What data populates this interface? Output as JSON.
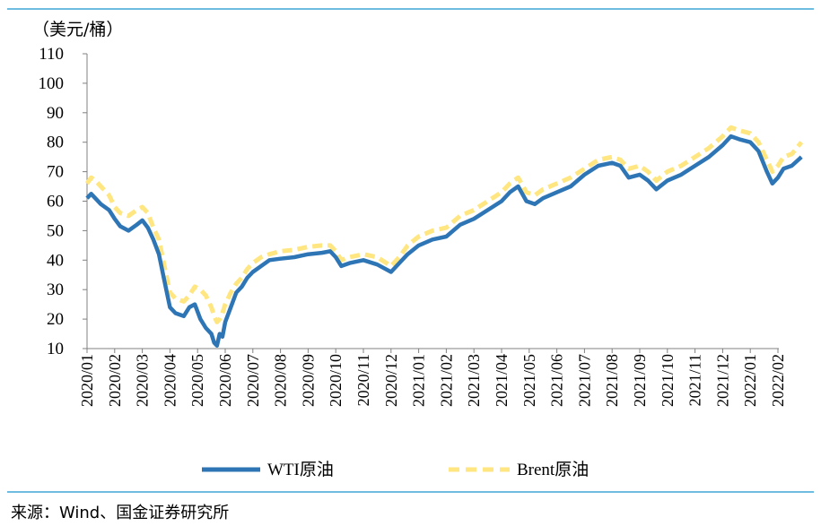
{
  "source": "来源：Wind、国金证券研究所",
  "colors": {
    "wti": "#2E75B6",
    "brent": "#FFE680",
    "rule": "#3FA7D6"
  },
  "chart_data": {
    "type": "line",
    "unit": "（美元/桶）",
    "ylim": [
      10,
      110
    ],
    "yticks": [
      10,
      20,
      30,
      40,
      50,
      60,
      70,
      80,
      90,
      100,
      110
    ],
    "categories": [
      "2020/01",
      "2020/02",
      "2020/03",
      "2020/04",
      "2020/05",
      "2020/06",
      "2020/07",
      "2020/08",
      "2020/09",
      "2020/10",
      "2020/11",
      "2020/12",
      "2021/01",
      "2021/02",
      "2021/03",
      "2021/04",
      "2021/05",
      "2021/06",
      "2021/07",
      "2021/08",
      "2021/09",
      "2021/10",
      "2021/11",
      "2021/12",
      "2022/01",
      "2022/02"
    ],
    "x_end": 25.85,
    "legend": "bottom",
    "series": [
      {
        "name": "WTI原油",
        "style": "solid",
        "points": [
          [
            0,
            61
          ],
          [
            0.15,
            62.5
          ],
          [
            0.3,
            61
          ],
          [
            0.5,
            59
          ],
          [
            0.8,
            57
          ],
          [
            1.0,
            54
          ],
          [
            1.2,
            51.5
          ],
          [
            1.5,
            50
          ],
          [
            1.8,
            52
          ],
          [
            2.0,
            53.5
          ],
          [
            2.2,
            51
          ],
          [
            2.4,
            47
          ],
          [
            2.6,
            42
          ],
          [
            2.8,
            33
          ],
          [
            3.0,
            24
          ],
          [
            3.2,
            22
          ],
          [
            3.5,
            21
          ],
          [
            3.7,
            24
          ],
          [
            3.9,
            25
          ],
          [
            4.1,
            20
          ],
          [
            4.3,
            17
          ],
          [
            4.5,
            15
          ],
          [
            4.6,
            12
          ],
          [
            4.7,
            11
          ],
          [
            4.8,
            15
          ],
          [
            4.9,
            14
          ],
          [
            5.0,
            19
          ],
          [
            5.2,
            24
          ],
          [
            5.4,
            29
          ],
          [
            5.6,
            31
          ],
          [
            5.8,
            34
          ],
          [
            6.0,
            36
          ],
          [
            6.3,
            38
          ],
          [
            6.6,
            40
          ],
          [
            7.0,
            40.5
          ],
          [
            7.5,
            41
          ],
          [
            8.0,
            42
          ],
          [
            8.5,
            42.5
          ],
          [
            8.8,
            43
          ],
          [
            9.0,
            41
          ],
          [
            9.2,
            38
          ],
          [
            9.5,
            39
          ],
          [
            10.0,
            40
          ],
          [
            10.5,
            38.5
          ],
          [
            11.0,
            36
          ],
          [
            11.3,
            39
          ],
          [
            11.6,
            42
          ],
          [
            12.0,
            45
          ],
          [
            12.5,
            47
          ],
          [
            13.0,
            48
          ],
          [
            13.5,
            52
          ],
          [
            14.0,
            54
          ],
          [
            14.5,
            57
          ],
          [
            15.0,
            60
          ],
          [
            15.3,
            63
          ],
          [
            15.6,
            65
          ],
          [
            15.9,
            60
          ],
          [
            16.2,
            59
          ],
          [
            16.5,
            61
          ],
          [
            17.0,
            63
          ],
          [
            17.5,
            65
          ],
          [
            18.0,
            69
          ],
          [
            18.5,
            72
          ],
          [
            19.0,
            73
          ],
          [
            19.3,
            72
          ],
          [
            19.6,
            68
          ],
          [
            20.0,
            69
          ],
          [
            20.3,
            67
          ],
          [
            20.6,
            64
          ],
          [
            21.0,
            67
          ],
          [
            21.5,
            69
          ],
          [
            22.0,
            72
          ],
          [
            22.5,
            75
          ],
          [
            23.0,
            79
          ],
          [
            23.3,
            82
          ],
          [
            23.6,
            81
          ],
          [
            24.0,
            80
          ],
          [
            24.3,
            77
          ],
          [
            24.6,
            70
          ],
          [
            24.8,
            66
          ],
          [
            25.0,
            68
          ],
          [
            25.2,
            71
          ],
          [
            25.5,
            72
          ],
          [
            25.85,
            75
          ]
        ]
      },
      {
        "name": "Brent原油",
        "style": "dashed",
        "points": [
          [
            0,
            66
          ],
          [
            0.15,
            68
          ],
          [
            0.3,
            67
          ],
          [
            0.5,
            65
          ],
          [
            0.8,
            62
          ],
          [
            1.0,
            58
          ],
          [
            1.2,
            56
          ],
          [
            1.5,
            55
          ],
          [
            1.8,
            57
          ],
          [
            2.0,
            58
          ],
          [
            2.2,
            56
          ],
          [
            2.4,
            51
          ],
          [
            2.6,
            47
          ],
          [
            2.8,
            38
          ],
          [
            3.0,
            29
          ],
          [
            3.2,
            27
          ],
          [
            3.5,
            26
          ],
          [
            3.7,
            28
          ],
          [
            3.9,
            31
          ],
          [
            4.1,
            30
          ],
          [
            4.3,
            28
          ],
          [
            4.5,
            24
          ],
          [
            4.6,
            21
          ],
          [
            4.7,
            19
          ],
          [
            4.8,
            20
          ],
          [
            4.9,
            22
          ],
          [
            5.0,
            25
          ],
          [
            5.2,
            29
          ],
          [
            5.4,
            32
          ],
          [
            5.6,
            34
          ],
          [
            5.8,
            37
          ],
          [
            6.0,
            39
          ],
          [
            6.3,
            41
          ],
          [
            6.6,
            42
          ],
          [
            7.0,
            43
          ],
          [
            7.5,
            43.5
          ],
          [
            8.0,
            44.5
          ],
          [
            8.5,
            45
          ],
          [
            8.8,
            45
          ],
          [
            9.0,
            43
          ],
          [
            9.2,
            40
          ],
          [
            9.5,
            41
          ],
          [
            10.0,
            42
          ],
          [
            10.5,
            41
          ],
          [
            11.0,
            38
          ],
          [
            11.3,
            41
          ],
          [
            11.6,
            45
          ],
          [
            12.0,
            48
          ],
          [
            12.5,
            50
          ],
          [
            13.0,
            51
          ],
          [
            13.5,
            55
          ],
          [
            14.0,
            57
          ],
          [
            14.5,
            60
          ],
          [
            15.0,
            63
          ],
          [
            15.3,
            66
          ],
          [
            15.6,
            68
          ],
          [
            15.9,
            63
          ],
          [
            16.2,
            62
          ],
          [
            16.5,
            64
          ],
          [
            17.0,
            66
          ],
          [
            17.5,
            68
          ],
          [
            18.0,
            71
          ],
          [
            18.5,
            74
          ],
          [
            19.0,
            75
          ],
          [
            19.3,
            74
          ],
          [
            19.6,
            71
          ],
          [
            20.0,
            72
          ],
          [
            20.3,
            70
          ],
          [
            20.6,
            67
          ],
          [
            21.0,
            70
          ],
          [
            21.5,
            72
          ],
          [
            22.0,
            75
          ],
          [
            22.5,
            78
          ],
          [
            23.0,
            82
          ],
          [
            23.3,
            85
          ],
          [
            23.6,
            84
          ],
          [
            24.0,
            83
          ],
          [
            24.3,
            80
          ],
          [
            24.6,
            74
          ],
          [
            24.8,
            70
          ],
          [
            25.0,
            72
          ],
          [
            25.2,
            75
          ],
          [
            25.5,
            76
          ],
          [
            25.85,
            80
          ]
        ]
      }
    ]
  }
}
